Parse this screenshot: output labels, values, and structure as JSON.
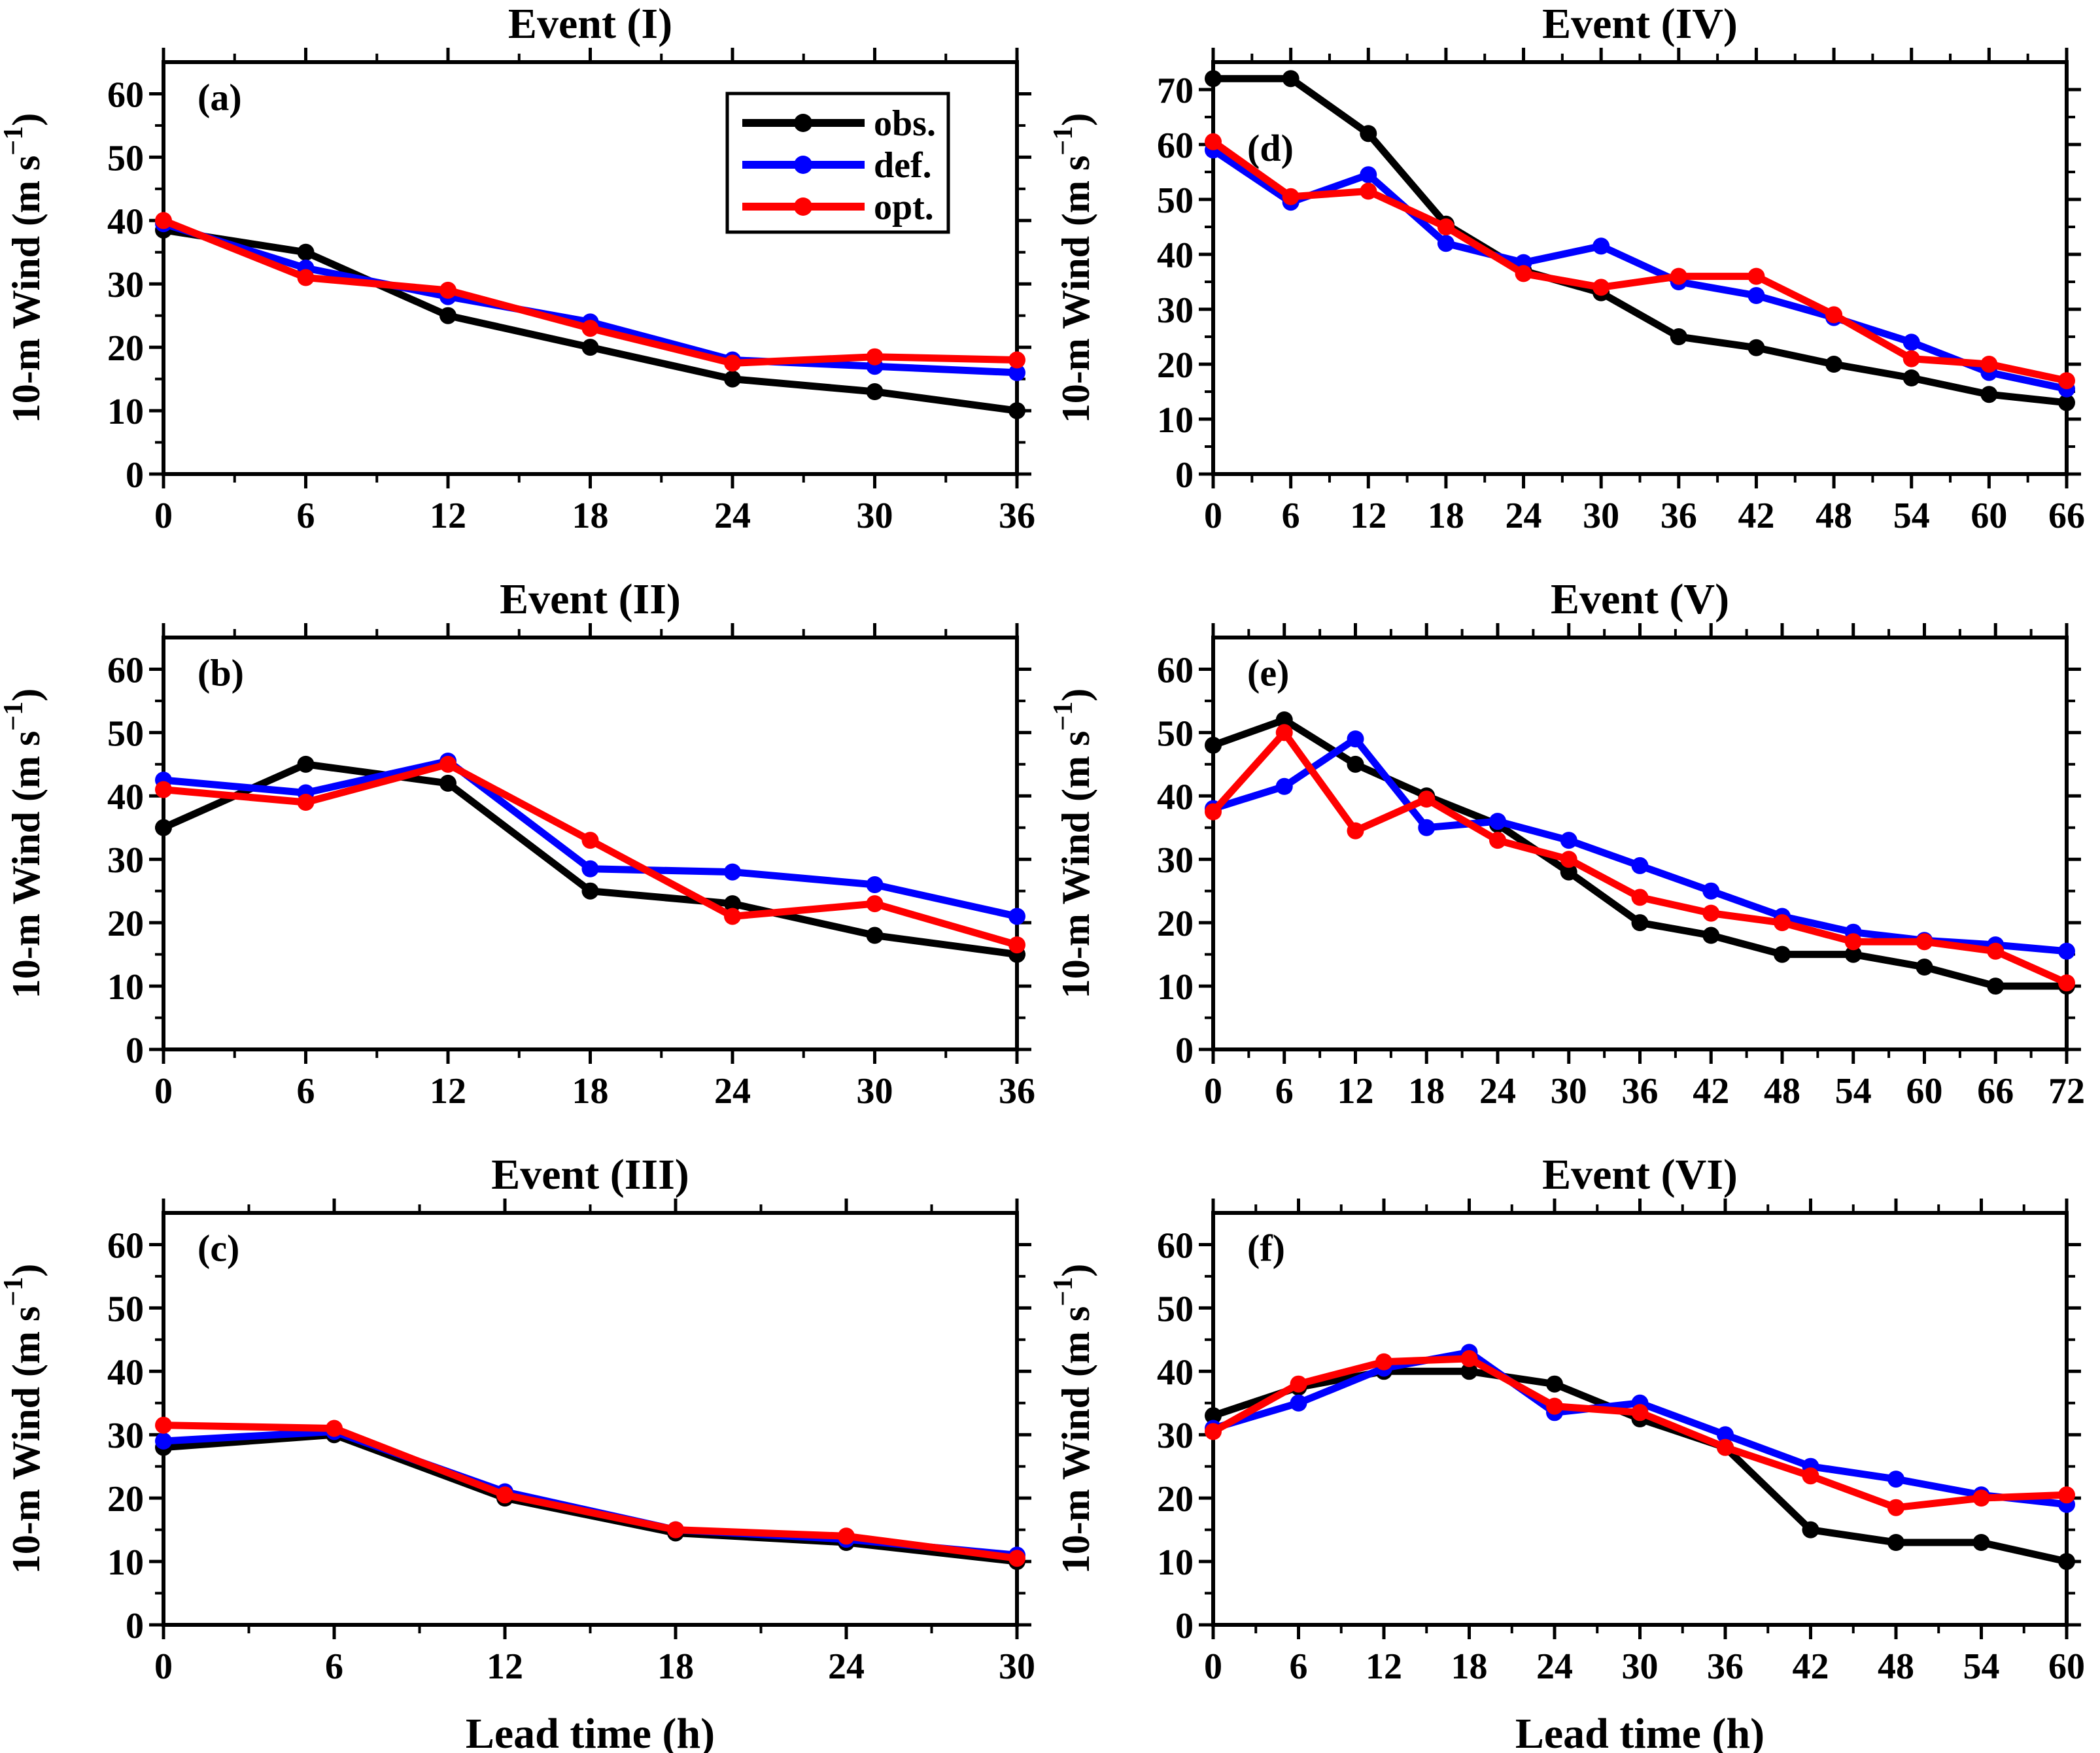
{
  "figure": {
    "ylabel": {
      "pre": "10-m Wind (m s",
      "sup": "−1",
      "post": ")"
    },
    "xlabel": "Lead time (h)",
    "axis_color": "#000000",
    "background": "#ffffff",
    "legend": {
      "entries": [
        {
          "label": "obs.",
          "color": "#000000"
        },
        {
          "label": "def.",
          "color": "#0000ff"
        },
        {
          "label": "opt.",
          "color": "#ff0000"
        }
      ]
    }
  },
  "chart_data": [
    {
      "type": "line",
      "panel_letter": "(a)",
      "title": "Event (I)",
      "x": [
        0,
        6,
        12,
        18,
        24,
        30,
        36
      ],
      "xlabel": "",
      "ylim": [
        0,
        65
      ],
      "yticks": [
        0,
        10,
        20,
        30,
        40,
        50,
        60
      ],
      "legend": true,
      "series": [
        {
          "name": "obs.",
          "color": "#000000",
          "values": [
            38.5,
            35,
            25,
            20,
            15,
            13,
            10
          ]
        },
        {
          "name": "def.",
          "color": "#0000ff",
          "values": [
            39.5,
            32.5,
            28,
            24,
            18,
            17,
            16
          ]
        },
        {
          "name": "opt.",
          "color": "#ff0000",
          "values": [
            40,
            31,
            29,
            23,
            17.5,
            18.5,
            18
          ]
        }
      ]
    },
    {
      "type": "line",
      "panel_letter": "(b)",
      "title": "Event (II)",
      "x": [
        0,
        6,
        12,
        18,
        24,
        30,
        36
      ],
      "xlabel": "",
      "ylim": [
        0,
        65
      ],
      "yticks": [
        0,
        10,
        20,
        30,
        40,
        50,
        60
      ],
      "legend": false,
      "series": [
        {
          "name": "obs.",
          "color": "#000000",
          "values": [
            35,
            45,
            42,
            25,
            23,
            18,
            15
          ]
        },
        {
          "name": "def.",
          "color": "#0000ff",
          "values": [
            42.5,
            40.5,
            45.5,
            28.5,
            28,
            26,
            21
          ]
        },
        {
          "name": "opt.",
          "color": "#ff0000",
          "values": [
            41,
            39,
            45,
            33,
            21,
            23,
            16.5
          ]
        }
      ]
    },
    {
      "type": "line",
      "panel_letter": "(c)",
      "title": "Event (III)",
      "x": [
        0,
        6,
        12,
        18,
        24,
        30
      ],
      "xlabel": "Lead time (h)",
      "ylim": [
        0,
        65
      ],
      "yticks": [
        0,
        10,
        20,
        30,
        40,
        50,
        60
      ],
      "legend": false,
      "series": [
        {
          "name": "obs.",
          "color": "#000000",
          "values": [
            28,
            30,
            20,
            14.5,
            13,
            10
          ]
        },
        {
          "name": "def.",
          "color": "#0000ff",
          "values": [
            29,
            30.5,
            21,
            15,
            13.5,
            11
          ]
        },
        {
          "name": "opt.",
          "color": "#ff0000",
          "values": [
            31.5,
            31,
            20.5,
            15,
            14,
            10.5
          ]
        }
      ]
    },
    {
      "type": "line",
      "panel_letter": "(d)",
      "title": "Event (IV)",
      "x": [
        0,
        6,
        12,
        18,
        24,
        30,
        36,
        42,
        48,
        54,
        60,
        66
      ],
      "xlabel": "",
      "ylim": [
        0,
        75
      ],
      "yticks": [
        0,
        10,
        20,
        30,
        40,
        50,
        60,
        70
      ],
      "legend": false,
      "series": [
        {
          "name": "obs.",
          "color": "#000000",
          "values": [
            72,
            72,
            62,
            45.5,
            37,
            33,
            25,
            23,
            20,
            17.5,
            14.5,
            13
          ]
        },
        {
          "name": "def.",
          "color": "#0000ff",
          "values": [
            59,
            49.5,
            54.5,
            42,
            38.5,
            41.5,
            35,
            32.5,
            28.5,
            24,
            18.5,
            15.5
          ]
        },
        {
          "name": "opt.",
          "color": "#ff0000",
          "values": [
            60.5,
            50.5,
            51.5,
            45,
            36.5,
            34,
            36,
            36,
            29,
            21,
            20,
            17
          ]
        }
      ]
    },
    {
      "type": "line",
      "panel_letter": "(e)",
      "title": "Event (V)",
      "x": [
        0,
        6,
        12,
        18,
        24,
        30,
        36,
        42,
        48,
        54,
        60,
        66,
        72
      ],
      "xlabel": "",
      "ylim": [
        0,
        65
      ],
      "yticks": [
        0,
        10,
        20,
        30,
        40,
        50,
        60
      ],
      "legend": false,
      "series": [
        {
          "name": "obs.",
          "color": "#000000",
          "values": [
            48,
            52,
            45,
            40,
            35.5,
            28,
            20,
            18,
            15,
            15,
            13,
            10,
            10
          ]
        },
        {
          "name": "def.",
          "color": "#0000ff",
          "values": [
            38,
            41.5,
            49,
            35,
            36,
            33,
            29,
            25,
            21,
            18.5,
            17.2,
            16.5,
            15.5
          ]
        },
        {
          "name": "opt.",
          "color": "#ff0000",
          "values": [
            37.5,
            50,
            34.5,
            39.5,
            33,
            30,
            24,
            21.5,
            20,
            17,
            17,
            15.5,
            10.5
          ]
        }
      ]
    },
    {
      "type": "line",
      "panel_letter": "(f)",
      "title": "Event (VI)",
      "x": [
        0,
        6,
        12,
        18,
        24,
        30,
        36,
        42,
        48,
        54,
        60
      ],
      "xlabel": "Lead time (h)",
      "ylim": [
        0,
        65
      ],
      "yticks": [
        0,
        10,
        20,
        30,
        40,
        50,
        60
      ],
      "legend": false,
      "series": [
        {
          "name": "obs.",
          "color": "#000000",
          "values": [
            33,
            37.5,
            40,
            40,
            38,
            32.5,
            28,
            15,
            13,
            13,
            10
          ]
        },
        {
          "name": "def.",
          "color": "#0000ff",
          "values": [
            31,
            35,
            40.5,
            43,
            33.5,
            35,
            30,
            25,
            23,
            20.5,
            19
          ]
        },
        {
          "name": "opt.",
          "color": "#ff0000",
          "values": [
            30.5,
            38,
            41.5,
            42,
            34.5,
            33.5,
            28,
            23.5,
            18.5,
            20,
            20.5
          ]
        }
      ]
    }
  ]
}
